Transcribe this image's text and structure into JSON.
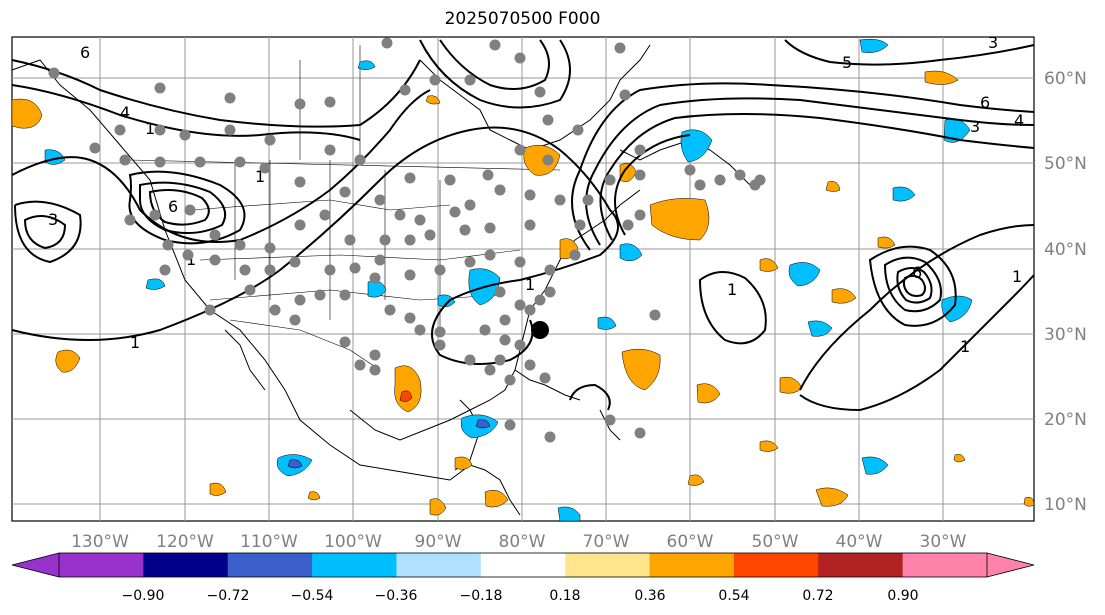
{
  "title": "2025070500 F000",
  "map": {
    "lon_labels": [
      "130°W",
      "120°W",
      "110°W",
      "100°W",
      "90°W",
      "80°W",
      "70°W",
      "60°W",
      "50°W",
      "40°W",
      "30°W"
    ],
    "lat_labels": [
      "60°N",
      "50°N",
      "40°N",
      "30°N",
      "20°N",
      "10°N"
    ],
    "contour_labels": [
      "1",
      "1",
      "1",
      "1",
      "1",
      "1",
      "1",
      "1",
      "3",
      "3",
      "3",
      "4",
      "4",
      "5",
      "6",
      "6",
      "6",
      "6"
    ],
    "storm_marker_color": "#000000",
    "obs_dot_color": "#808080"
  },
  "colorbar": {
    "ticks": [
      "−0.90",
      "−0.72",
      "−0.54",
      "−0.36",
      "−0.18",
      "0.18",
      "0.36",
      "0.54",
      "0.72",
      "0.90"
    ],
    "colors": [
      "#9932cc",
      "#00008b",
      "#3a5fcd",
      "#00bfff",
      "#b0e2ff",
      "#ffffff",
      "#ffe68c",
      "#ffa500",
      "#ff4500",
      "#b22222",
      "#ff82ab"
    ]
  }
}
